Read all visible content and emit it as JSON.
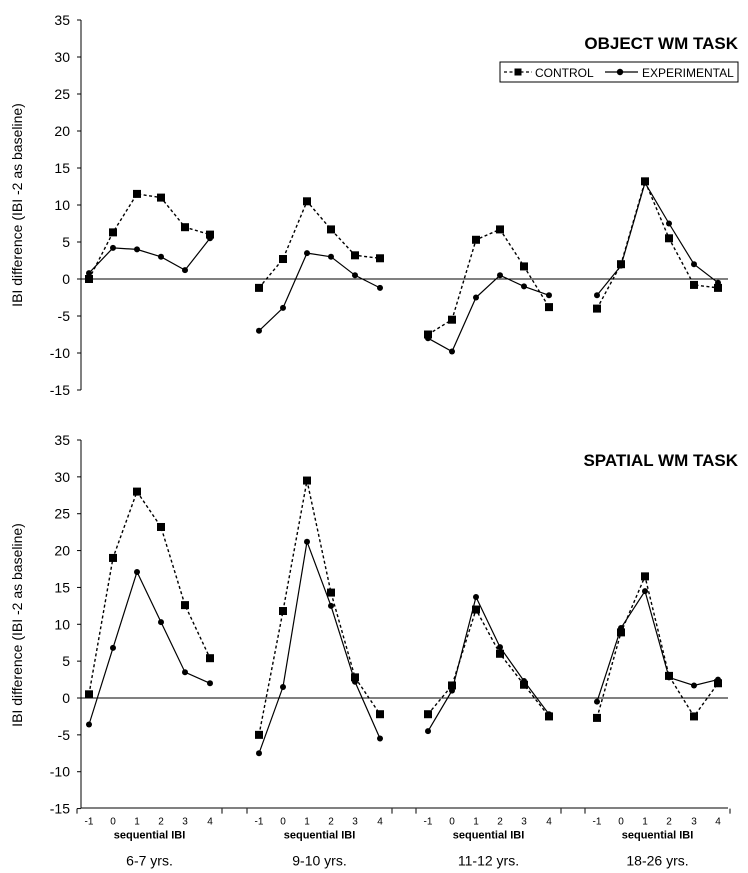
{
  "chart_data": [
    {
      "type": "line",
      "title": "OBJECT WM TASK",
      "ylabel": "IBI difference (IBI -2 as baseline)",
      "ylim": [
        -15,
        35
      ],
      "yticks": [
        -15,
        -10,
        -5,
        0,
        5,
        10,
        15,
        20,
        25,
        30,
        35
      ],
      "legend": "top-right",
      "grid": false,
      "groups": [
        {
          "name": "6-7 yrs.",
          "xlabel": "sequential IBI",
          "x": [
            "-1",
            "0",
            "1",
            "2",
            "3",
            "4"
          ],
          "series": [
            {
              "name": "CONTROL",
              "values": [
                0,
                6.3,
                11.5,
                11,
                7,
                6
              ]
            },
            {
              "name": "EXPERIMENTAL",
              "values": [
                0.8,
                4.2,
                4,
                3,
                1.2,
                5.5
              ]
            }
          ]
        },
        {
          "name": "9-10 yrs.",
          "xlabel": "sequential IBI",
          "x": [
            "-1",
            "0",
            "1",
            "2",
            "3",
            "4"
          ],
          "series": [
            {
              "name": "CONTROL",
              "values": [
                -1.2,
                2.7,
                10.5,
                6.7,
                3.2,
                2.8
              ]
            },
            {
              "name": "EXPERIMENTAL",
              "values": [
                -7,
                -3.9,
                3.5,
                3,
                0.5,
                -1.2
              ]
            }
          ]
        },
        {
          "name": "11-12 yrs.",
          "xlabel": "sequential IBI",
          "x": [
            "-1",
            "0",
            "1",
            "2",
            "3",
            "4"
          ],
          "series": [
            {
              "name": "CONTROL",
              "values": [
                -7.5,
                -5.5,
                5.3,
                6.7,
                1.7,
                -3.8
              ]
            },
            {
              "name": "EXPERIMENTAL",
              "values": [
                -8,
                -9.8,
                -2.5,
                0.5,
                -1,
                -2.2
              ]
            }
          ]
        },
        {
          "name": "18-26 yrs.",
          "xlabel": "sequential IBI",
          "x": [
            "-1",
            "0",
            "1",
            "2",
            "3",
            "4"
          ],
          "series": [
            {
              "name": "CONTROL",
              "values": [
                -4,
                2,
                13.2,
                5.5,
                -0.8,
                -1.2
              ]
            },
            {
              "name": "EXPERIMENTAL",
              "values": [
                -2.2,
                1.8,
                13,
                7.5,
                2,
                -0.5
              ]
            }
          ]
        }
      ]
    },
    {
      "type": "line",
      "title": "SPATIAL WM TASK",
      "ylabel": "IBI difference (IBI -2 as baseline)",
      "ylim": [
        -15,
        35
      ],
      "yticks": [
        -15,
        -10,
        -5,
        0,
        5,
        10,
        15,
        20,
        25,
        30,
        35
      ],
      "grid": false,
      "groups": [
        {
          "name": "6-7 yrs.",
          "xlabel": "sequential IBI",
          "x": [
            "-1",
            "0",
            "1",
            "2",
            "3",
            "4"
          ],
          "series": [
            {
              "name": "CONTROL",
              "values": [
                0.5,
                19,
                28,
                23.2,
                12.6,
                5.4
              ]
            },
            {
              "name": "EXPERIMENTAL",
              "values": [
                -3.6,
                6.8,
                17.1,
                10.3,
                3.5,
                2
              ]
            }
          ]
        },
        {
          "name": "9-10 yrs.",
          "xlabel": "sequential IBI",
          "x": [
            "-1",
            "0",
            "1",
            "2",
            "3",
            "4"
          ],
          "series": [
            {
              "name": "CONTROL",
              "values": [
                -5,
                11.8,
                29.5,
                14.3,
                2.8,
                -2.2
              ]
            },
            {
              "name": "EXPERIMENTAL",
              "values": [
                -7.5,
                1.5,
                21.2,
                12.5,
                2.2,
                -5.5
              ]
            }
          ]
        },
        {
          "name": "11-12 yrs.",
          "xlabel": "sequential IBI",
          "x": [
            "-1",
            "0",
            "1",
            "2",
            "3",
            "4"
          ],
          "series": [
            {
              "name": "CONTROL",
              "values": [
                -2.2,
                1.7,
                12,
                6,
                1.8,
                -2.5
              ]
            },
            {
              "name": "EXPERIMENTAL",
              "values": [
                -4.5,
                1,
                13.7,
                6.9,
                2.3,
                -2.2
              ]
            }
          ]
        },
        {
          "name": "18-26 yrs.",
          "xlabel": "sequential IBI",
          "x": [
            "-1",
            "0",
            "1",
            "2",
            "3",
            "4"
          ],
          "series": [
            {
              "name": "CONTROL",
              "values": [
                -2.7,
                8.9,
                16.5,
                3,
                -2.5,
                2
              ]
            },
            {
              "name": "EXPERIMENTAL",
              "values": [
                -0.5,
                9.5,
                14.5,
                2.8,
                1.7,
                2.5
              ]
            }
          ]
        }
      ]
    }
  ]
}
